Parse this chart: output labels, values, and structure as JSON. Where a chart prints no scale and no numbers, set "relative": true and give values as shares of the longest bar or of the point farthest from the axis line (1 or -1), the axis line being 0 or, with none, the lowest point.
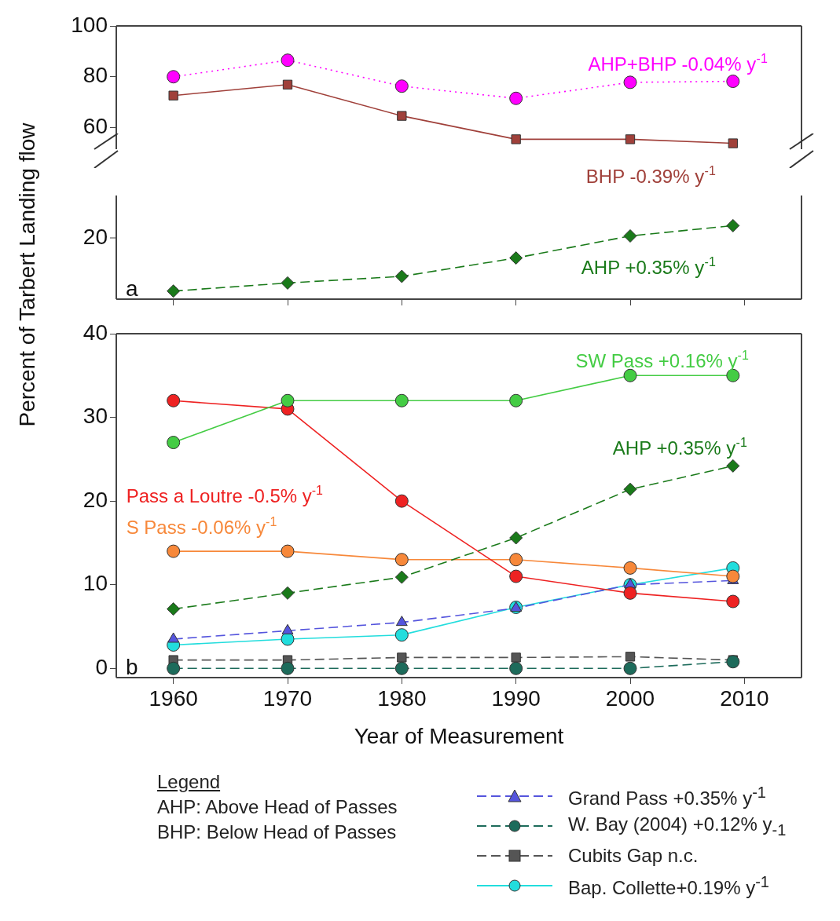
{
  "chart_data": [
    {
      "type": "line",
      "ylabel": "Percent of Tarbert Landing flow",
      "x": [
        1960,
        1970,
        1980,
        1990,
        2000,
        2009
      ],
      "xlim": [
        1955,
        2015
      ],
      "ylim": [
        51.5,
        100
      ],
      "yticks": [
        60,
        80,
        100
      ],
      "tick_labels": "y",
      "legend": false,
      "series": [
        {
          "name": "AHP+BHP -0.04% y$^{-1}$",
          "color": "#ff00ff",
          "marker": "circle",
          "line_style": "dotted",
          "values": [
            80,
            86.5,
            76.3,
            71.5,
            77.8,
            78.2
          ]
        },
        {
          "name": "BHP -0.39% y$^{-1}$",
          "color": "#a0403a",
          "marker": "square",
          "line_style": "solid",
          "values": [
            72.6,
            76.9,
            64.6,
            55.4,
            55.4,
            53.8
          ]
        }
      ]
    },
    {
      "type": "line",
      "x": [
        1960,
        1970,
        1980,
        1990,
        2000,
        2009
      ],
      "xlim": [
        1955,
        2015
      ],
      "relative": true,
      "xticks": [
        1960,
        1970,
        1980,
        1990,
        2000,
        2010
      ],
      "tick_labels": "y",
      "legend": false,
      "annotations": [
        "a",
        "20"
      ],
      "series": [
        {
          "name": "AHP +0.35% y$^{-1}$",
          "color": "#1a7a1a",
          "marker": "diamond",
          "line_style": "dashed",
          "values": [
            0.11,
            0.22,
            0.31,
            0.56,
            0.86,
            1
          ]
        }
      ]
    },
    {
      "type": "line",
      "xlabel": "Year of Measurement",
      "x": [
        1960,
        1970,
        1980,
        1990,
        2000,
        2009
      ],
      "xlim": [
        1955,
        2015
      ],
      "ylim": [
        -1.1,
        40
      ],
      "yticks": [
        0,
        10,
        20,
        30,
        40
      ],
      "xticks": [
        1960,
        1970,
        1980,
        1990,
        2000,
        2010
      ],
      "legend": "bottom",
      "annotations": [
        "b",
        "Legend",
        "AHP: Above Head of Passes",
        "BHP: Below Head of Passes"
      ],
      "series": [
        {
          "name": "SW Pass +0.16% y$^{-1}$",
          "color": "#44cc44",
          "marker": "circle",
          "line_style": "solid",
          "values": [
            27,
            32,
            32,
            32,
            35,
            35
          ]
        },
        {
          "name": "AHP +0.35% y$^{-1}$",
          "color": "#1a7a1a",
          "marker": "diamond",
          "line_style": "dashed",
          "values": [
            7.1,
            9,
            10.9,
            15.6,
            21.4,
            24.2
          ]
        },
        {
          "name": "Pass a Loutre -0.5% y$^{-1}$",
          "color": "#ee2222",
          "marker": "circle",
          "line_style": "solid",
          "values": [
            32,
            31,
            20,
            11,
            9,
            8
          ]
        },
        {
          "name": "S Pass -0.06% y$^{-1}$",
          "color": "#f7883a",
          "marker": "circle",
          "line_style": "solid",
          "values": [
            14,
            14,
            13,
            13,
            12,
            11
          ]
        },
        {
          "name": "Grand Pass +0.35% y$^{-1}$",
          "color": "#5555dd",
          "marker": "triangle",
          "line_style": "dashed",
          "values": [
            3.5,
            4.5,
            5.5,
            7.2,
            10,
            10.5
          ]
        },
        {
          "name": "W. Bay (2004) +0.12% y$_{-1}$",
          "color": "#1d6b5b",
          "marker": "circle",
          "line_style": "dashed",
          "values": [
            0,
            0,
            0,
            0,
            0,
            0.8
          ]
        },
        {
          "name": "Cubits Gap n.c.",
          "color": "#555555",
          "marker": "square",
          "line_style": "dashed",
          "values": [
            1,
            1,
            1.3,
            1.3,
            1.4,
            1
          ]
        },
        {
          "name": "Bap. Collette+0.19% y$^{-1}$",
          "color": "#22dddd",
          "marker": "circle",
          "line_style": "solid",
          "values": [
            2.8,
            3.5,
            4,
            7.3,
            10,
            12
          ]
        }
      ]
    }
  ]
}
